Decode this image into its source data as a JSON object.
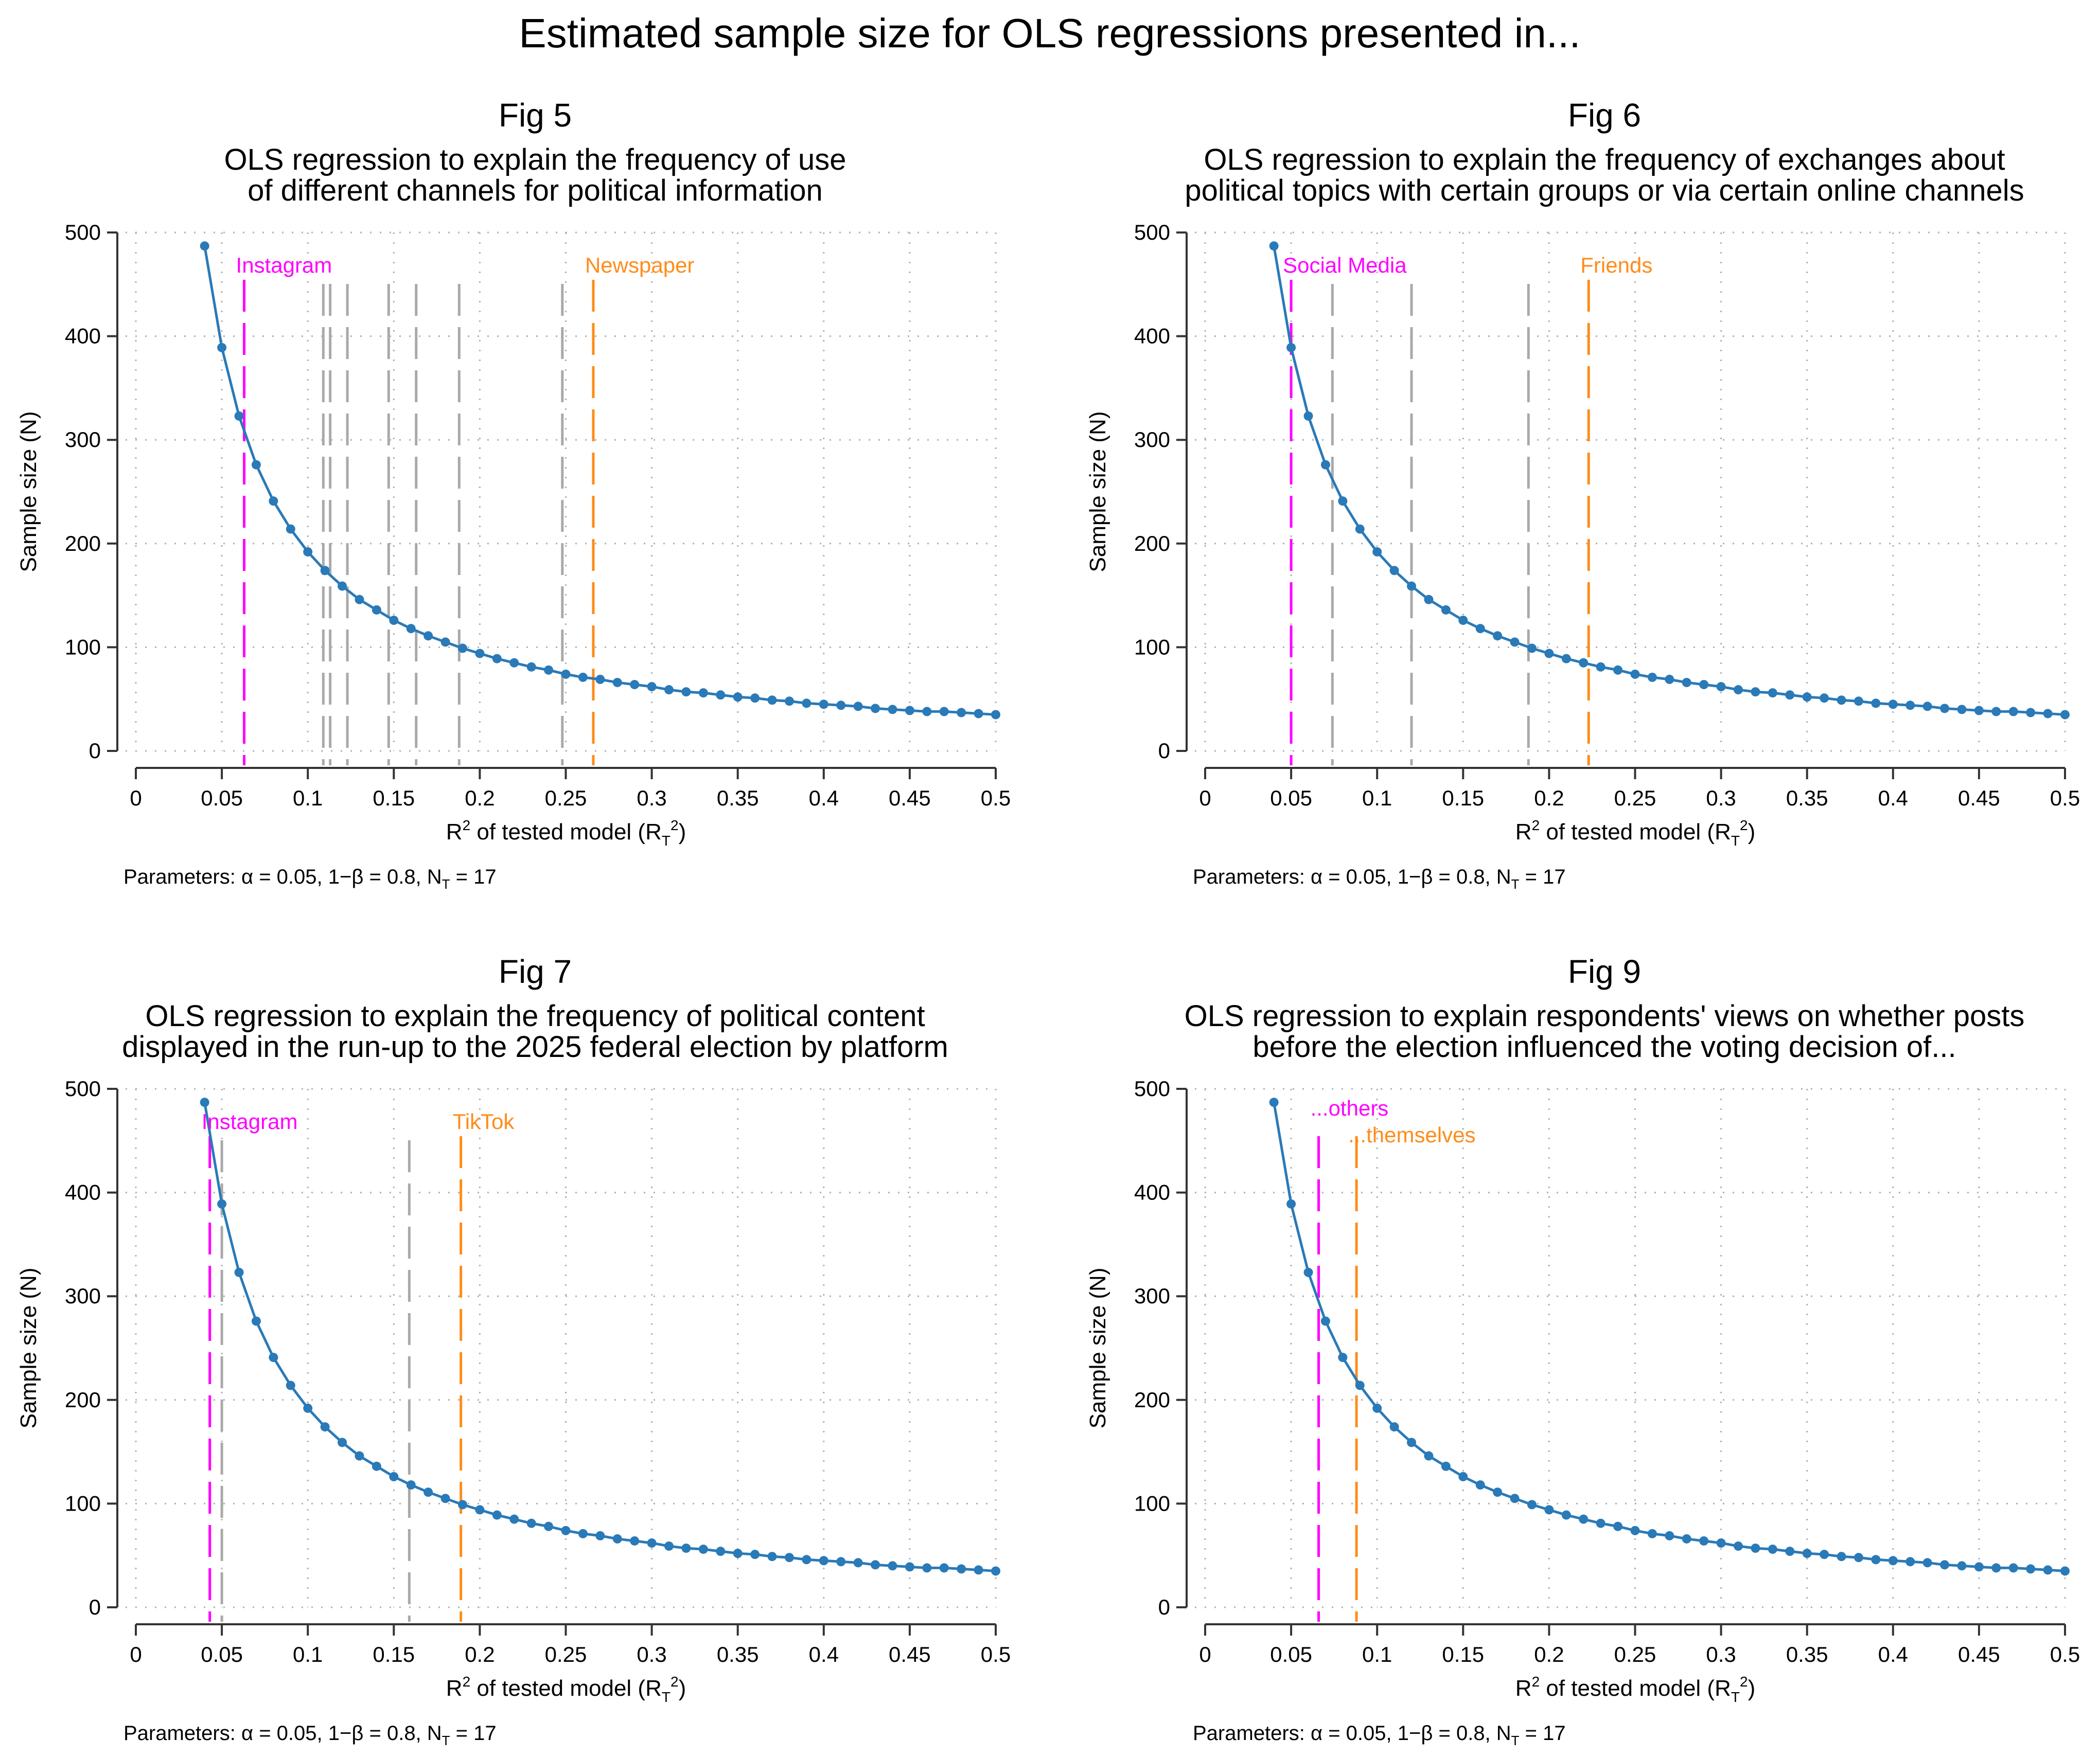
{
  "main_title": "Estimated sample size for OLS regressions presented in...",
  "axis": {
    "xlabel_main": "R",
    "xlabel_mid": " of tested model (R",
    "xlabel_sub": "T",
    "xlabel_end": ")",
    "xlabel_sup": "2",
    "ylabel": "Sample size (N)",
    "xlim": [
      0,
      0.5
    ],
    "ylim": [
      0,
      500
    ],
    "xticks": [
      0,
      0.05,
      0.1,
      0.15,
      0.2,
      0.25,
      0.3,
      0.35,
      0.4,
      0.45,
      0.5
    ],
    "xtick_labels": [
      "0",
      "0.05",
      "0.1",
      "0.15",
      "0.2",
      "0.25",
      "0.3",
      "0.35",
      "0.4",
      "0.45",
      "0.5"
    ],
    "yticks": [
      0,
      100,
      200,
      300,
      400,
      500
    ],
    "ytick_labels": [
      "0",
      "100",
      "200",
      "300",
      "400",
      "500"
    ],
    "grid": "dotted"
  },
  "params": {
    "text": "Parameters: α = 0.05, 1−β = 0.8, N",
    "sub": "T",
    "end": " = 17"
  },
  "colors": {
    "curve": "#2a7ab8",
    "highlight_low": "#ff00ff",
    "highlight_high": "#ff8c1a",
    "other_lines": "#a9a9a9",
    "grid": "#b0b0b0",
    "axis": "#333333"
  },
  "curve": {
    "x": [
      0.04,
      0.05,
      0.06,
      0.07,
      0.08,
      0.09,
      0.1,
      0.11,
      0.12,
      0.13,
      0.14,
      0.15,
      0.16,
      0.17,
      0.18,
      0.19,
      0.2,
      0.21,
      0.22,
      0.23,
      0.24,
      0.25,
      0.26,
      0.27,
      0.28,
      0.29,
      0.3,
      0.31,
      0.32,
      0.33,
      0.34,
      0.35,
      0.36,
      0.37,
      0.38,
      0.39,
      0.4,
      0.41,
      0.42,
      0.43,
      0.44,
      0.45,
      0.46,
      0.47,
      0.48,
      0.49,
      0.5
    ],
    "y": [
      487,
      389,
      323,
      276,
      241,
      214,
      192,
      174,
      159,
      146,
      136,
      126,
      118,
      111,
      105,
      99,
      94,
      89,
      85,
      81,
      78,
      74,
      71,
      69,
      66,
      64,
      62,
      59,
      57,
      56,
      54,
      52,
      51,
      49,
      48,
      46,
      45,
      44,
      43,
      41,
      40,
      39,
      38,
      38,
      37,
      36,
      35
    ]
  },
  "chart_data": [
    {
      "type": "line",
      "panel_label": "Fig 5",
      "title_lines": [
        "OLS regression to explain the frequency of use",
        "of different channels for political information"
      ],
      "vlines": [
        {
          "x": 0.063,
          "role": "low",
          "label": "Instagram"
        },
        {
          "x": 0.109,
          "role": "other",
          "label": ""
        },
        {
          "x": 0.113,
          "role": "other",
          "label": ""
        },
        {
          "x": 0.123,
          "role": "other",
          "label": ""
        },
        {
          "x": 0.147,
          "role": "other",
          "label": ""
        },
        {
          "x": 0.163,
          "role": "other",
          "label": ""
        },
        {
          "x": 0.188,
          "role": "other",
          "label": ""
        },
        {
          "x": 0.248,
          "role": "other",
          "label": ""
        },
        {
          "x": 0.266,
          "role": "high",
          "label": "Newspaper"
        }
      ]
    },
    {
      "type": "line",
      "panel_label": "Fig 6",
      "title_lines": [
        "OLS regression to explain the frequency of exchanges about",
        "political topics with certain groups or via certain online channels"
      ],
      "vlines": [
        {
          "x": 0.05,
          "role": "low",
          "label": "Social Media"
        },
        {
          "x": 0.074,
          "role": "other",
          "label": ""
        },
        {
          "x": 0.12,
          "role": "other",
          "label": ""
        },
        {
          "x": 0.188,
          "role": "other",
          "label": ""
        },
        {
          "x": 0.223,
          "role": "high",
          "label": "Friends"
        }
      ]
    },
    {
      "type": "line",
      "panel_label": "Fig 7",
      "title_lines": [
        "OLS regression to explain the frequency of political content",
        "displayed in the run-up to the 2025 federal election by platform"
      ],
      "vlines": [
        {
          "x": 0.043,
          "role": "low",
          "label": "Instagram"
        },
        {
          "x": 0.05,
          "role": "other",
          "label": ""
        },
        {
          "x": 0.159,
          "role": "other",
          "label": ""
        },
        {
          "x": 0.189,
          "role": "high",
          "label": "TikTok"
        }
      ]
    },
    {
      "type": "line",
      "panel_label": "Fig 9",
      "title_lines": [
        "OLS regression to explain respondents' views on whether posts",
        "before the election influenced the voting decision of..."
      ],
      "vlines": [
        {
          "x": 0.066,
          "role": "low",
          "label": "...others"
        },
        {
          "x": 0.088,
          "role": "high",
          "label": "...themselves"
        }
      ]
    }
  ]
}
